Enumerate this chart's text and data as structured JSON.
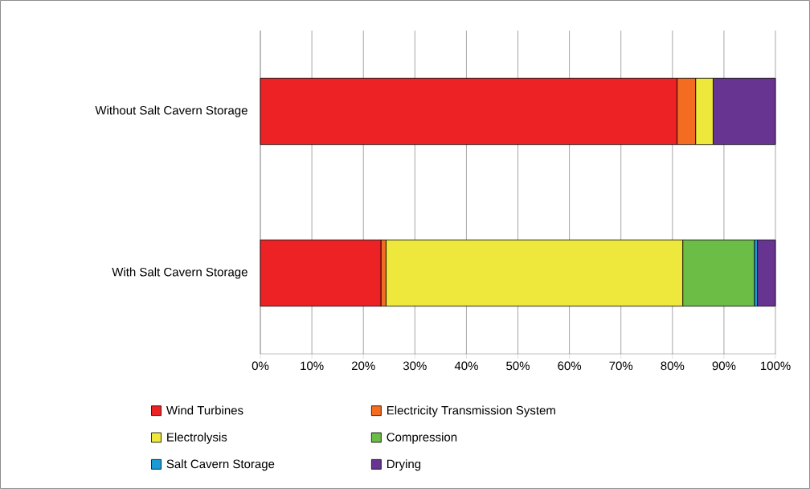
{
  "chart_data": {
    "type": "bar",
    "orientation": "horizontal",
    "stacked": true,
    "categories": [
      "Without Salt Cavern Storage",
      "With Salt Cavern Storage"
    ],
    "series": [
      {
        "name": "Wind Turbines",
        "color": "#ed2224",
        "values": [
          80.9,
          23.4
        ]
      },
      {
        "name": "Electricity Transmission System",
        "color": "#f36c21",
        "values": [
          3.6,
          1.0
        ]
      },
      {
        "name": "Electrolysis",
        "color": "#ede83b",
        "values": [
          3.4,
          57.6
        ]
      },
      {
        "name": "Compression",
        "color": "#6bbd45",
        "values": [
          0,
          13.9
        ]
      },
      {
        "name": "Salt Cavern Storage",
        "color": "#1b9ad6",
        "values": [
          0,
          0.6
        ]
      },
      {
        "name": "Drying",
        "color": "#673491",
        "values": [
          12.1,
          3.5
        ]
      }
    ],
    "xlim": [
      0,
      100
    ],
    "xticks": [
      {
        "value": 0,
        "label": "0%"
      },
      {
        "value": 10,
        "label": "10%"
      },
      {
        "value": 20,
        "label": "20%"
      },
      {
        "value": 30,
        "label": "30%"
      },
      {
        "value": 40,
        "label": "40%"
      },
      {
        "value": 50,
        "label": "50%"
      },
      {
        "value": 60,
        "label": "60%"
      },
      {
        "value": 70,
        "label": "70%"
      },
      {
        "value": 80,
        "label": "80%"
      },
      {
        "value": 90,
        "label": "90%"
      },
      {
        "value": 100,
        "label": "100%"
      }
    ],
    "grid": "x",
    "legend": "bottom"
  }
}
